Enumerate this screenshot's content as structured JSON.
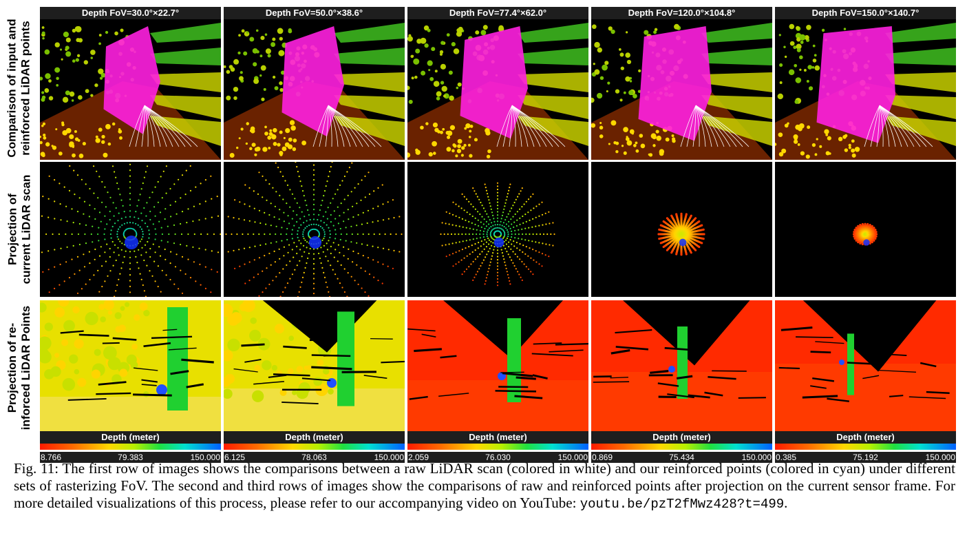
{
  "row_labels": [
    [
      "Comparison of input and",
      "reinforced LiDAR points"
    ],
    [
      "Projection of",
      "current LiDAR scan"
    ],
    [
      "Projection of re-",
      "inforced LiDAR Points"
    ]
  ],
  "columns": [
    {
      "header": "Depth FoV=30.0°×22.7°",
      "colorbar_title": "Depth (meter)",
      "ticks": [
        "8.766",
        "79.383",
        "150.000"
      ]
    },
    {
      "header": "Depth FoV=50.0°×38.6°",
      "colorbar_title": "Depth (meter)",
      "ticks": [
        "6.125",
        "78.063",
        "150.000"
      ]
    },
    {
      "header": "Depth FoV=77.4°×62.0°",
      "colorbar_title": "Depth (meter)",
      "ticks": [
        "2.059",
        "76.030",
        "150.000"
      ]
    },
    {
      "header": "Depth FoV=120.0°×104.8°",
      "colorbar_title": "Depth (meter)",
      "ticks": [
        "0.869",
        "75.434",
        "150.000"
      ]
    },
    {
      "header": "Depth FoV=150.0°×140.7°",
      "colorbar_title": "Depth (meter)",
      "ticks": [
        "0.385",
        "75.192",
        "150.000"
      ]
    }
  ],
  "caption": {
    "label": "Fig. 11:",
    "text": "The first row of images shows the comparisons between a raw LiDAR scan (colored in white) and our reinforced points (colored in cyan) under different sets of rasterizing FoV. The second and third rows of images show the comparisons of raw and reinforced points after projection on the current sensor frame. For more detailed visualizations of this process, please refer to our accompanying video on YouTube:",
    "url": "youtu.be/pzT2fMwz428?t=499",
    "end": "."
  },
  "colors": {
    "background": "#000000",
    "bar_dark": "#1e1e1e",
    "magenta": "#ff20e0",
    "red": "#ff2a00",
    "yellow": "#ffd800",
    "green": "#20d030"
  },
  "projection_spread": [
    1.0,
    0.85,
    0.55,
    0.22,
    0.11
  ],
  "sky_fraction": [
    0.0,
    0.08,
    0.2,
    0.35,
    0.48
  ]
}
